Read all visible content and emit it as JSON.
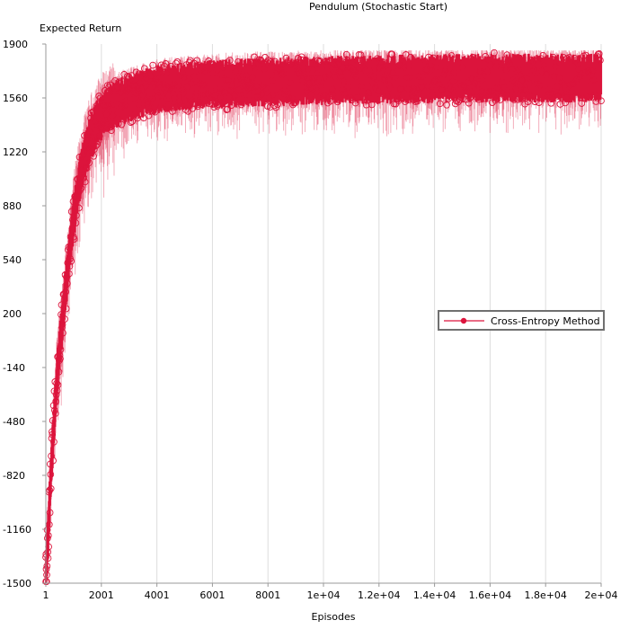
{
  "chart_data": {
    "type": "line",
    "title": "Pendulum (Stochastic Start)",
    "ylabel": "Expected Return",
    "xlabel": "Episodes",
    "xlim": [
      1,
      20000
    ],
    "ylim": [
      -1500,
      1900
    ],
    "x_ticks": [
      {
        "value": 1,
        "label": "1"
      },
      {
        "value": 2001,
        "label": "2001"
      },
      {
        "value": 4001,
        "label": "4001"
      },
      {
        "value": 6001,
        "label": "6001"
      },
      {
        "value": 8001,
        "label": "8001"
      },
      {
        "value": 10000,
        "label": "1e+04"
      },
      {
        "value": 12000,
        "label": "1.2e+04"
      },
      {
        "value": 14000,
        "label": "1.4e+04"
      },
      {
        "value": 16000,
        "label": "1.6e+04"
      },
      {
        "value": 18000,
        "label": "1.8e+04"
      },
      {
        "value": 20000,
        "label": "2e+04"
      }
    ],
    "y_ticks": [
      {
        "value": 1900,
        "label": "1900"
      },
      {
        "value": 1560,
        "label": "1560"
      },
      {
        "value": 1220,
        "label": "1220"
      },
      {
        "value": 880,
        "label": "880"
      },
      {
        "value": 540,
        "label": "540"
      },
      {
        "value": 200,
        "label": "200"
      },
      {
        "value": -140,
        "label": "-140"
      },
      {
        "value": -480,
        "label": "-480"
      },
      {
        "value": -820,
        "label": "-820"
      },
      {
        "value": -1160,
        "label": "-1160"
      },
      {
        "value": -1500,
        "label": "-1500"
      }
    ],
    "grid": "vertical",
    "legend_position": "right",
    "series": [
      {
        "name": "Cross-Entropy Method",
        "color": "#dc143c",
        "marker": "open-circle",
        "x": [
          1,
          100,
          200,
          300,
          400,
          500,
          600,
          700,
          800,
          900,
          1000,
          1200,
          1400,
          1600,
          1800,
          2000,
          2400,
          2800,
          3200,
          3600,
          4000,
          5000,
          6000,
          7000,
          8000,
          9000,
          10000,
          11000,
          12000,
          13000,
          14000,
          15000,
          16000,
          17000,
          18000,
          19000,
          20000
        ],
        "values": [
          -1450,
          -1100,
          -750,
          -450,
          -200,
          0,
          180,
          350,
          520,
          680,
          820,
          1050,
          1200,
          1320,
          1400,
          1460,
          1520,
          1560,
          1590,
          1610,
          1630,
          1650,
          1660,
          1670,
          1675,
          1680,
          1685,
          1690,
          1690,
          1695,
          1695,
          1700,
          1700,
          1700,
          1700,
          1700,
          1700
        ]
      }
    ]
  }
}
